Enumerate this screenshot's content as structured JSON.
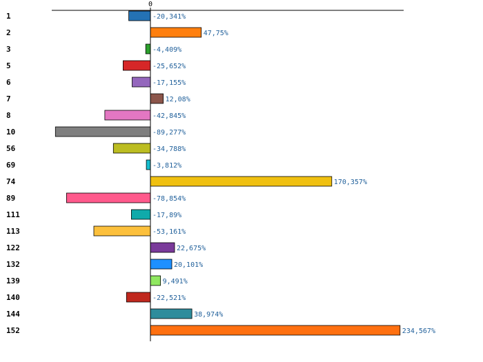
{
  "chart_data": {
    "type": "bar",
    "orientation": "horizontal",
    "title": "",
    "xlabel": "",
    "ylabel": "",
    "zero_tick_label": "0",
    "xlim": [
      -100,
      240
    ],
    "categories": [
      "1",
      "2",
      "3",
      "5",
      "6",
      "7",
      "8",
      "10",
      "56",
      "69",
      "74",
      "89",
      "111",
      "113",
      "122",
      "132",
      "139",
      "140",
      "144",
      "152"
    ],
    "values": [
      -20.341,
      47.75,
      -4.409,
      -25.652,
      -17.155,
      12.08,
      -42.845,
      -89.277,
      -34.788,
      -3.812,
      170.357,
      -78.854,
      -17.89,
      -53.161,
      22.675,
      20.101,
      9.491,
      -22.521,
      38.974,
      234.567
    ],
    "value_labels": [
      "-20,341%",
      "47,75%",
      "-4,409%",
      "-25,652%",
      "-17,155%",
      "12,08%",
      "-42,845%",
      "-89,277%",
      "-34,788%",
      "-3,812%",
      "170,357%",
      "-78,854%",
      "-17,89%",
      "-53,161%",
      "22,675%",
      "20,101%",
      "9,491%",
      "-22,521%",
      "38,974%",
      "234,567%"
    ],
    "colors": [
      "#2472b4",
      "#ff7f0e",
      "#2ca02c",
      "#d62728",
      "#9467bd",
      "#8c564b",
      "#e377c2",
      "#7f7f7f",
      "#bcbd22",
      "#17becf",
      "#f0c010",
      "#ff5a8c",
      "#10aaaa",
      "#fcc03c",
      "#7a3a9a",
      "#1e90ff",
      "#90e860",
      "#c0281e",
      "#2e8c9c",
      "#ff7010"
    ]
  }
}
